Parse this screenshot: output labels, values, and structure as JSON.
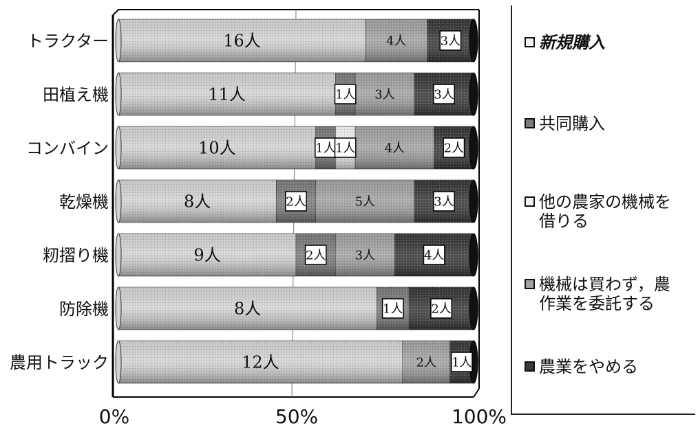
{
  "chart_data": {
    "type": "bar",
    "orientation": "horizontal",
    "stacked": "percent",
    "categories": [
      "トラクター",
      "田植え機",
      "コンバイン",
      "乾燥機",
      "籾摺り機",
      "防除機",
      "農用トラック"
    ],
    "series": [
      {
        "name": "新規購入",
        "values": [
          16,
          11,
          10,
          8,
          9,
          8,
          12
        ],
        "labels": [
          "16人",
          "11人",
          "10人",
          "8人",
          "9人",
          "8人",
          "12人"
        ]
      },
      {
        "name": "共同購入",
        "values": [
          0,
          1,
          1,
          2,
          2,
          1,
          0
        ],
        "labels": [
          "",
          "1人",
          "1人",
          "2人",
          "2人",
          "1人",
          ""
        ]
      },
      {
        "name": "他の農家の機械を\n借りる",
        "values": [
          0,
          0,
          1,
          0,
          0,
          0,
          0
        ],
        "labels": [
          "",
          "",
          "1人",
          "",
          "",
          "",
          ""
        ]
      },
      {
        "name": "機械は買わず，農\n作業を委託する",
        "values": [
          4,
          3,
          4,
          5,
          3,
          0,
          2
        ],
        "labels": [
          "4人",
          "3人",
          "4人",
          "5人",
          "3人",
          "",
          "2人"
        ]
      },
      {
        "name": "農業をやめる",
        "values": [
          3,
          3,
          2,
          3,
          4,
          2,
          1
        ],
        "labels": [
          "3人",
          "3人",
          "2人",
          "3人",
          "4人",
          "2人",
          "1人"
        ]
      }
    ],
    "xticks": [
      "0%",
      "50%",
      "100%"
    ],
    "xlim": [
      0,
      100
    ],
    "legend_position": "right",
    "colors": [
      "#d2d2d2",
      "#7c7c7c",
      "#f2f2f2",
      "#a2a2a2",
      "#3a3a3a"
    ],
    "boxed_series": [
      1,
      4
    ],
    "legend_italic": [
      0
    ]
  }
}
